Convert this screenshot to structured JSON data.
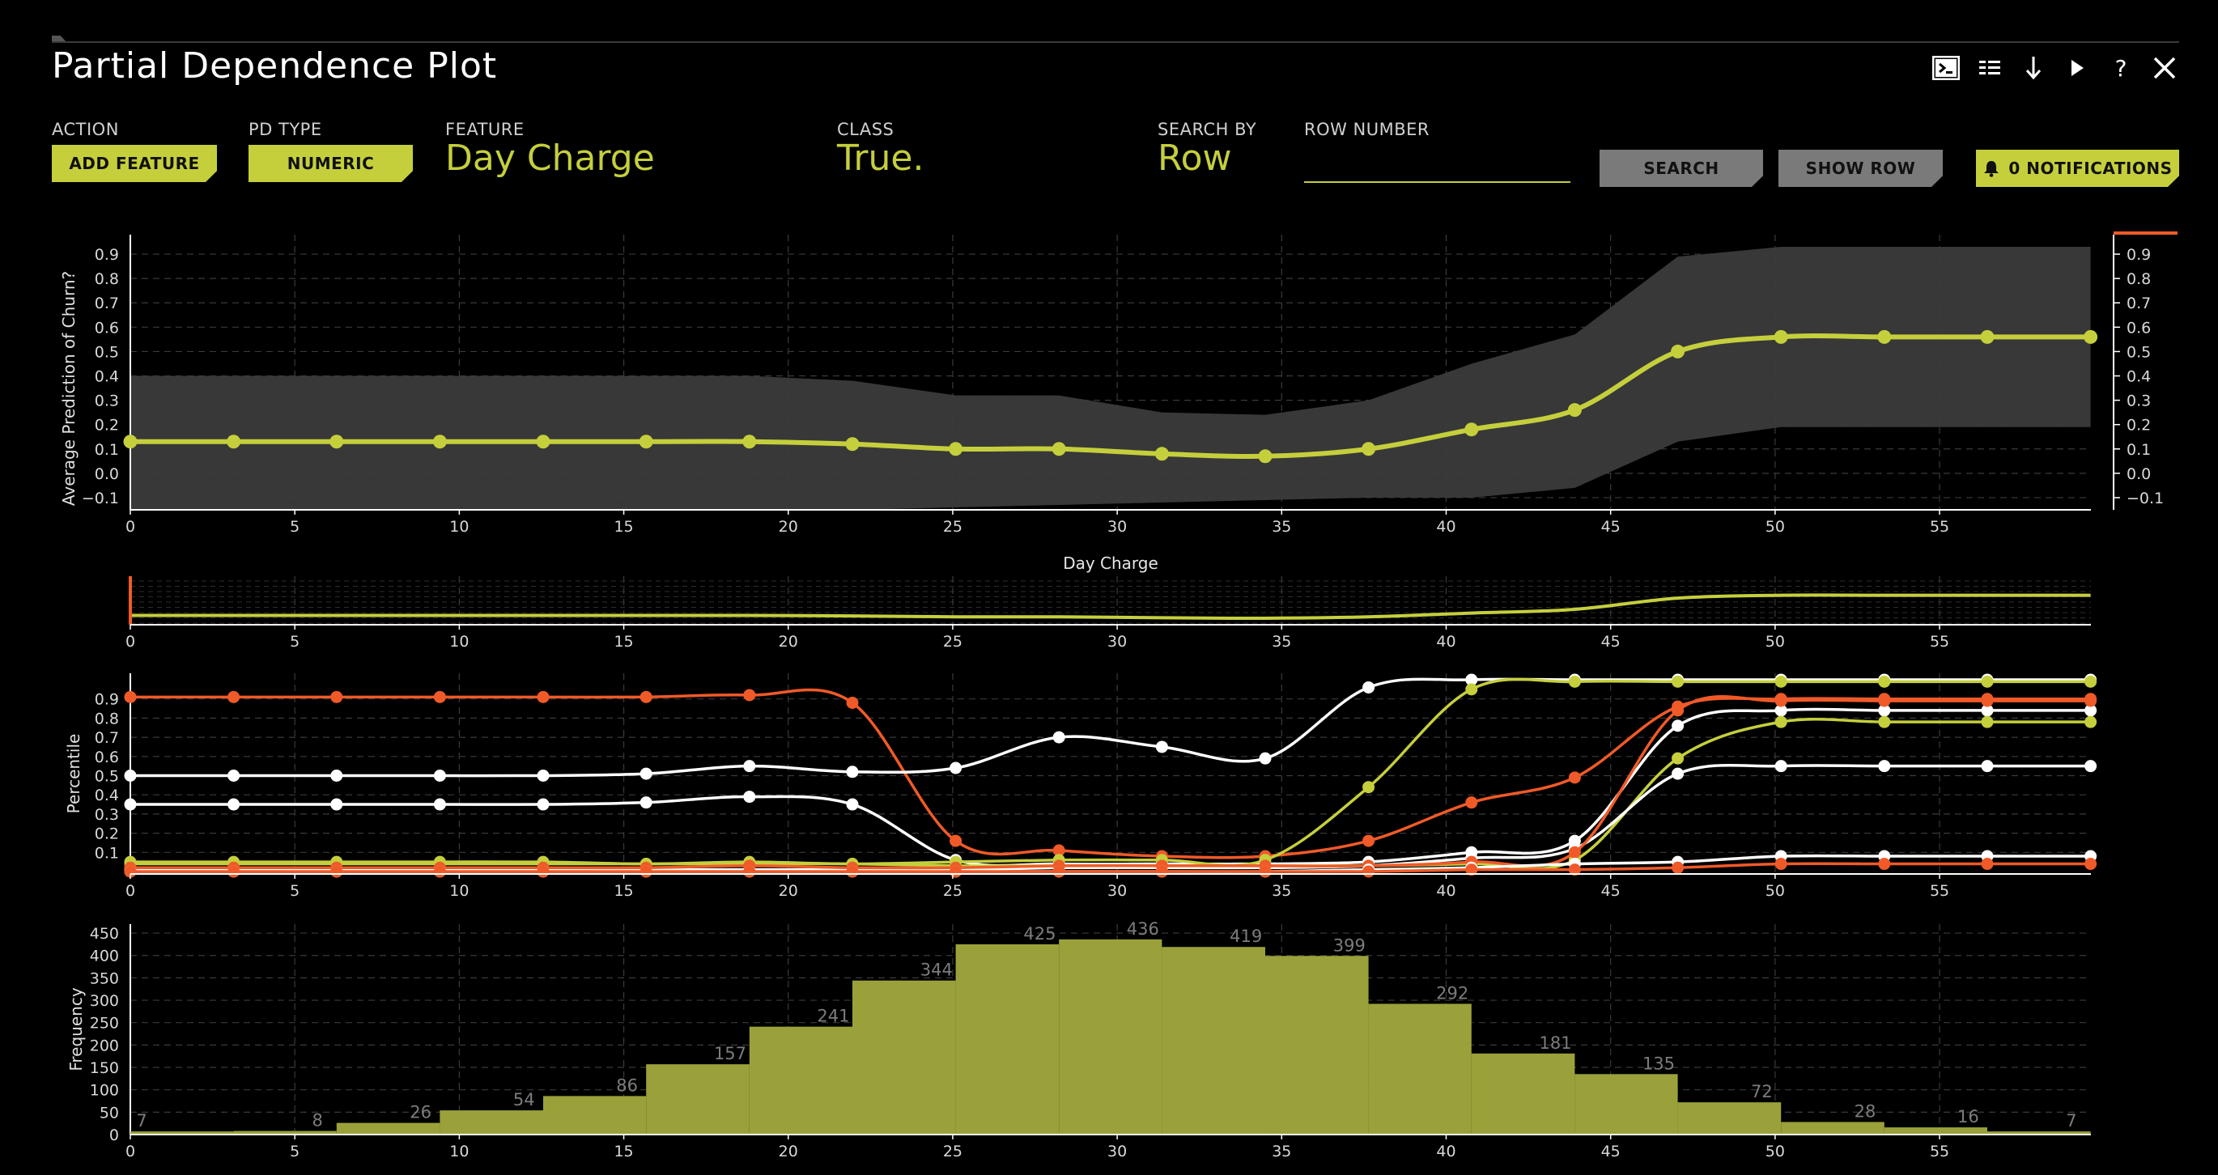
{
  "window": {
    "title": "Partial Dependence Plot"
  },
  "toolbar_icons": [
    "terminal-icon",
    "list-icon",
    "download-arrow-icon",
    "play-icon",
    "help-icon",
    "close-icon"
  ],
  "controls": {
    "action": {
      "label": "ACTION",
      "button": "ADD FEATURE"
    },
    "pd_type": {
      "label": "PD TYPE",
      "button": "NUMERIC"
    },
    "feature": {
      "label": "FEATURE",
      "value": "Day Charge"
    },
    "class": {
      "label": "CLASS",
      "value": "True."
    },
    "search_by": {
      "label": "SEARCH BY",
      "value": "Row"
    },
    "row_number": {
      "label": "ROW NUMBER",
      "value": "",
      "placeholder": ""
    },
    "search_button": "SEARCH",
    "show_row_button": "SHOW ROW",
    "notifications_button": "0 NOTIFICATIONS"
  },
  "colors": {
    "lime": "#c5cf3c",
    "orange": "#f05a28",
    "white": "#ffffff",
    "band": "#3b3b3b",
    "histogram": "#9aa13a",
    "grid": "#3a3a3a"
  },
  "chart_data": [
    {
      "type": "line",
      "id": "pd-main",
      "xlabel": "Day Charge",
      "ylabel": "Average Prediction of Churn?",
      "xlim": [
        0,
        59.6
      ],
      "ylim": [
        -0.15,
        0.98
      ],
      "x_ticks": [
        0,
        5,
        10,
        15,
        20,
        25,
        30,
        35,
        40,
        45,
        50,
        55
      ],
      "y_ticks": [
        -0.1,
        0.0,
        0.1,
        0.2,
        0.3,
        0.4,
        0.5,
        0.6,
        0.7,
        0.8,
        0.9
      ],
      "y_tick_labels": [
        "−0.1",
        "0.0",
        "0.1",
        "0.2",
        "0.3",
        "0.4",
        "0.5",
        "0.6",
        "0.7",
        "0.8",
        "0.9"
      ],
      "grid": true,
      "x": [
        0,
        3.14,
        6.27,
        9.41,
        12.55,
        15.68,
        18.82,
        21.95,
        25.09,
        28.23,
        31.36,
        34.5,
        37.64,
        40.77,
        43.91,
        47.04,
        50.18,
        53.32,
        56.45,
        59.59
      ],
      "series": [
        {
          "color": "#c5cf3c",
          "values": [
            0.13,
            0.13,
            0.13,
            0.13,
            0.13,
            0.13,
            0.13,
            0.12,
            0.1,
            0.1,
            0.08,
            0.07,
            0.1,
            0.18,
            0.26,
            0.5,
            0.56,
            0.56,
            0.56,
            0.56
          ]
        }
      ],
      "band_upper": [
        0.4,
        0.4,
        0.4,
        0.4,
        0.4,
        0.4,
        0.4,
        0.38,
        0.32,
        0.32,
        0.25,
        0.24,
        0.3,
        0.45,
        0.57,
        0.89,
        0.93,
        0.93,
        0.93,
        0.93
      ],
      "band_lower": [
        -0.15,
        -0.15,
        -0.15,
        -0.15,
        -0.15,
        -0.15,
        -0.15,
        -0.15,
        -0.14,
        -0.13,
        -0.12,
        -0.11,
        -0.1,
        -0.1,
        -0.06,
        0.13,
        0.19,
        0.19,
        0.19,
        0.19
      ]
    },
    {
      "type": "line",
      "id": "pd-navigator",
      "xlim": [
        0,
        59.6
      ],
      "x_ticks": [
        0,
        5,
        10,
        15,
        20,
        25,
        30,
        35,
        40,
        45,
        50,
        55
      ]
    },
    {
      "type": "line",
      "id": "percentile",
      "ylabel": "Percentile",
      "xlim": [
        0,
        59.6
      ],
      "ylim": [
        0.0,
        1.0
      ],
      "y_ticks": [
        0.1,
        0.2,
        0.3,
        0.4,
        0.5,
        0.6,
        0.7,
        0.8,
        0.9
      ],
      "y_tick_labels": [
        "0.1",
        "0.2",
        "0.3",
        "0.4",
        "0.5",
        "0.6",
        "0.7",
        "0.8",
        "0.9"
      ],
      "x_ticks": [
        0,
        5,
        10,
        15,
        20,
        25,
        30,
        35,
        40,
        45,
        50,
        55
      ],
      "grid": true,
      "x": [
        0,
        3.14,
        6.27,
        9.41,
        12.55,
        15.68,
        18.82,
        21.95,
        25.09,
        28.23,
        31.36,
        34.5,
        37.64,
        40.77,
        43.91,
        47.04,
        50.18,
        53.32,
        56.45,
        59.59
      ],
      "series": [
        {
          "color": "#f05a28",
          "values": [
            0.91,
            0.91,
            0.91,
            0.91,
            0.91,
            0.91,
            0.92,
            0.88,
            0.16,
            0.11,
            0.08,
            0.08,
            0.16,
            0.36,
            0.49,
            0.86,
            0.9,
            0.9,
            0.9,
            0.9
          ]
        },
        {
          "color": "#ffffff",
          "values": [
            0.5,
            0.5,
            0.5,
            0.5,
            0.5,
            0.51,
            0.55,
            0.52,
            0.54,
            0.7,
            0.65,
            0.59,
            0.96,
            1.0,
            1.0,
            1.0,
            1.0,
            1.0,
            1.0,
            1.0
          ]
        },
        {
          "color": "#ffffff",
          "values": [
            0.35,
            0.35,
            0.35,
            0.35,
            0.35,
            0.36,
            0.39,
            0.35,
            0.06,
            0.04,
            0.04,
            0.04,
            0.05,
            0.1,
            0.16,
            0.76,
            0.84,
            0.84,
            0.84,
            0.84
          ]
        },
        {
          "color": "#c5cf3c",
          "values": [
            0.05,
            0.05,
            0.05,
            0.05,
            0.05,
            0.04,
            0.05,
            0.04,
            0.05,
            0.06,
            0.06,
            0.06,
            0.44,
            0.95,
            0.99,
            0.99,
            0.99,
            0.99,
            0.99,
            0.99
          ]
        },
        {
          "color": "#c5cf3c",
          "values": [
            0.04,
            0.04,
            0.04,
            0.04,
            0.04,
            0.04,
            0.04,
            0.04,
            0.03,
            0.03,
            0.03,
            0.03,
            0.03,
            0.04,
            0.06,
            0.59,
            0.78,
            0.78,
            0.78,
            0.78
          ]
        },
        {
          "color": "#ffffff",
          "values": [
            0.01,
            0.01,
            0.01,
            0.01,
            0.01,
            0.01,
            0.01,
            0.01,
            0.01,
            0.02,
            0.02,
            0.02,
            0.03,
            0.07,
            0.12,
            0.51,
            0.55,
            0.55,
            0.55,
            0.55
          ]
        },
        {
          "color": "#f05a28",
          "values": [
            0.02,
            0.02,
            0.02,
            0.02,
            0.02,
            0.02,
            0.03,
            0.02,
            0.02,
            0.03,
            0.03,
            0.03,
            0.03,
            0.05,
            0.1,
            0.84,
            0.89,
            0.89,
            0.89,
            0.89
          ]
        },
        {
          "color": "#ffffff",
          "values": [
            0.0,
            0.0,
            0.0,
            0.0,
            0.0,
            0.0,
            0.0,
            0.0,
            0.0,
            0.0,
            0.0,
            0.0,
            0.01,
            0.02,
            0.04,
            0.05,
            0.08,
            0.08,
            0.08,
            0.08
          ]
        },
        {
          "color": "#f05a28",
          "values": [
            0.0,
            0.0,
            0.0,
            0.0,
            0.0,
            0.0,
            0.0,
            0.0,
            0.0,
            0.0,
            0.0,
            0.0,
            0.0,
            0.01,
            0.01,
            0.02,
            0.04,
            0.04,
            0.04,
            0.04
          ]
        }
      ]
    },
    {
      "type": "bar",
      "id": "histogram",
      "ylabel": "Frequency",
      "xlim": [
        0,
        59.6
      ],
      "ylim": [
        0,
        470
      ],
      "y_ticks": [
        0,
        50,
        100,
        150,
        200,
        250,
        300,
        350,
        400,
        450
      ],
      "x_ticks": [
        0,
        5,
        10,
        15,
        20,
        25,
        30,
        35,
        40,
        45,
        50,
        55
      ],
      "grid": true,
      "bin_edges": [
        0,
        3.14,
        6.27,
        9.41,
        12.55,
        15.68,
        18.82,
        21.95,
        25.09,
        28.23,
        31.36,
        34.5,
        37.64,
        40.77,
        43.91,
        47.04,
        50.18,
        53.32,
        56.45,
        59.59
      ],
      "values": [
        7,
        8,
        26,
        54,
        86,
        157,
        241,
        344,
        425,
        436,
        419,
        399,
        292,
        181,
        135,
        72,
        28,
        16,
        7
      ]
    }
  ]
}
